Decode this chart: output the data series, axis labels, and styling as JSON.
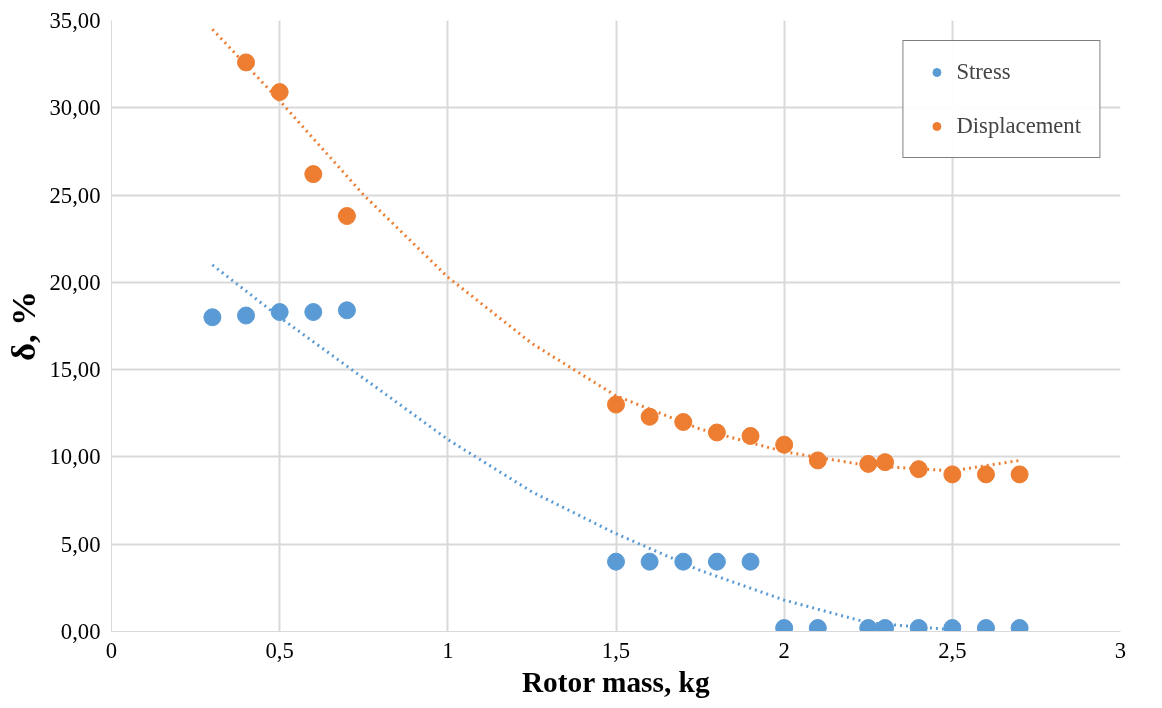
{
  "chart_data": {
    "type": "scatter",
    "xlabel": "Rotor mass, kg",
    "ylabel": "δ, %",
    "xlim": [
      0,
      3
    ],
    "xticks": [
      0,
      {
        "value": 0.5,
        "label": "0,5"
      },
      1,
      {
        "value": 1.5,
        "label": "1,5"
      },
      2,
      {
        "value": 2.5,
        "label": "2,5"
      },
      3
    ],
    "ylim": [
      0,
      35
    ],
    "yticks": [
      {
        "value": 0,
        "label": "0,00"
      },
      {
        "value": 5,
        "label": "5,00"
      },
      {
        "value": 10,
        "label": "10,00"
      },
      {
        "value": 15,
        "label": "15,00"
      },
      {
        "value": 20,
        "label": "20,00"
      },
      {
        "value": 25,
        "label": "25,00"
      },
      {
        "value": 30,
        "label": "30,00"
      },
      {
        "value": 35,
        "label": "35,00"
      }
    ],
    "grid": true,
    "legend": "top right",
    "marker": "circle",
    "series": [
      {
        "type": "line",
        "marker": "none",
        "line_style": "dotted",
        "color": "#5b9bd5",
        "x": [
          0.3,
          0.5,
          0.7,
          1.0,
          1.25,
          1.5,
          1.75,
          2.0,
          2.25,
          2.5
        ],
        "values": [
          21.0,
          18.0,
          15.2,
          11.0,
          8.0,
          5.6,
          3.5,
          1.8,
          0.5,
          0.1
        ]
      },
      {
        "type": "line",
        "marker": "none",
        "line_style": "dotted",
        "color": "#ed7d31",
        "x": [
          0.3,
          0.5,
          0.75,
          1.0,
          1.25,
          1.5,
          1.75,
          2.0,
          2.25,
          2.5,
          2.7
        ],
        "values": [
          34.5,
          30.4,
          25.0,
          20.3,
          16.5,
          13.5,
          11.6,
          10.3,
          9.5,
          9.2,
          9.8
        ]
      },
      {
        "name": "Stress",
        "color": "#5b9bd5",
        "x": [
          0.3,
          0.4,
          0.5,
          0.6,
          0.7,
          1.5,
          1.6,
          1.7,
          1.8,
          1.9,
          2.0,
          2.1,
          2.25,
          2.3,
          2.4,
          2.5,
          2.6,
          2.7
        ],
        "values": [
          18.0,
          18.1,
          18.3,
          18.3,
          18.4,
          4.0,
          4.0,
          4.0,
          4.0,
          4.0,
          0.2,
          0.2,
          0.2,
          0.2,
          0.2,
          0.2,
          0.2,
          0.2
        ]
      },
      {
        "name": "Displacement",
        "color": "#ed7d31",
        "x": [
          0.4,
          0.5,
          0.6,
          0.7,
          1.5,
          1.6,
          1.7,
          1.8,
          1.9,
          2.0,
          2.1,
          2.25,
          2.3,
          2.4,
          2.5,
          2.6,
          2.7
        ],
        "values": [
          32.6,
          30.9,
          26.2,
          23.8,
          13.0,
          12.3,
          12.0,
          11.4,
          11.2,
          10.7,
          9.8,
          9.6,
          9.7,
          9.3,
          9.0,
          9.0,
          9.0
        ]
      }
    ]
  }
}
